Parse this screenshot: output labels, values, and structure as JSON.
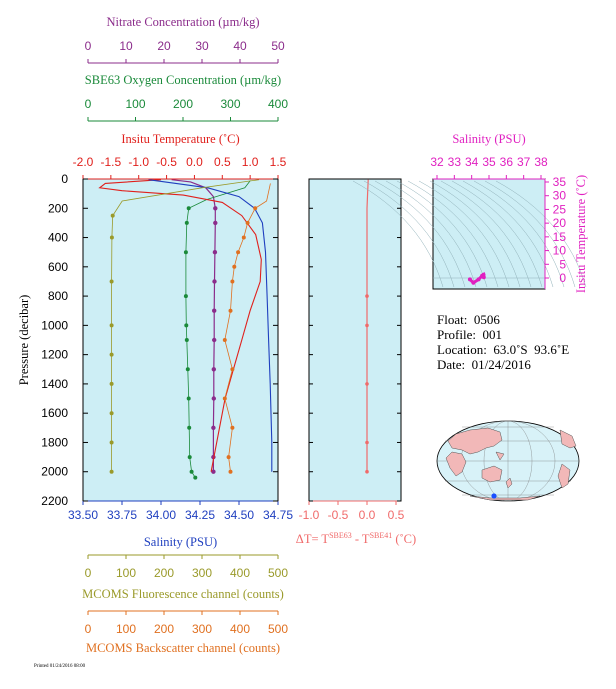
{
  "colors": {
    "panel_bg": "#cdeef5",
    "nitrate": "#8b2c8b",
    "oxygen": "#1a8a3a",
    "temperature": "#e0201c",
    "salinity": "#1f3fbf",
    "fluorescence": "#9a9a2a",
    "backscatter": "#e07020",
    "delta_t": "#f06a6a",
    "ts_diagram": "#e020c0",
    "map_ocean": "#d8f2f8",
    "map_land": "#f2b8b8",
    "float_marker": "#1a4fff"
  },
  "axes": {
    "nitrate": {
      "label": "Nitrate Concentration (µm/kg)",
      "ticks": [
        "0",
        "10",
        "20",
        "30",
        "40",
        "50"
      ]
    },
    "oxygen": {
      "label": "SBE63 Oxygen Concentration (µm/kg)",
      "ticks": [
        "0",
        "100",
        "200",
        "300",
        "400"
      ]
    },
    "temperature": {
      "label": "Insitu Temperature (˚C)",
      "ticks": [
        "-2.0",
        "-1.5",
        "-1.0",
        "-0.5",
        "0.0",
        "0.5",
        "1.0",
        "1.5"
      ]
    },
    "pressure": {
      "label": "Pressure (decibar)",
      "ticks": [
        "0",
        "200",
        "400",
        "600",
        "800",
        "1000",
        "1200",
        "1400",
        "1600",
        "1800",
        "2000",
        "2200"
      ]
    },
    "salinity": {
      "label": "Salinity (PSU)",
      "ticks": [
        "33.50",
        "33.75",
        "34.00",
        "34.25",
        "34.50",
        "34.75"
      ]
    },
    "fluorescence": {
      "label": "MCOMS Fluorescence channel (counts)",
      "ticks": [
        "0",
        "100",
        "200",
        "300",
        "400",
        "500"
      ]
    },
    "backscatter": {
      "label": "MCOMS Backscatter channel (counts)",
      "ticks": [
        "0",
        "100",
        "200",
        "300",
        "400",
        "500"
      ]
    },
    "delta_t": {
      "label_main": "ΔT= T",
      "sup1": "SBE63",
      "label_mid": " - T",
      "sup2": "SBE41",
      "label_end": " (˚C)",
      "ticks": [
        "-1.0",
        "-0.5",
        "0.0",
        "0.5"
      ]
    },
    "ts_salinity": {
      "label": "Salinity (PSU)",
      "ticks": [
        "32",
        "33",
        "34",
        "35",
        "36",
        "37",
        "38"
      ]
    },
    "ts_temperature": {
      "label": "Insitu Temperature (˚C)",
      "ticks": [
        "0",
        "5",
        "10",
        "15",
        "20",
        "25",
        "30",
        "35"
      ]
    }
  },
  "info": {
    "float": "Float:  0506",
    "profile": "Profile:  001",
    "location": "Location:  63.0˚S  93.6˚E",
    "date": "Date:  01/24/2016"
  },
  "footer_text": "Printed 01/24/2016 08:00",
  "chart_data": [
    {
      "type": "line",
      "title": "",
      "ylabel": "Pressure (decibar)",
      "ylim": [
        2200,
        0
      ],
      "grid": false,
      "series": [
        {
          "name": "Nitrate Concentration",
          "axis": "nitrate",
          "xlim": [
            0,
            50
          ],
          "x": [
            22,
            27,
            31,
            33,
            33.5,
            33.5,
            33.4,
            33.3,
            33.2,
            33.2,
            33.1,
            33.1,
            33.0,
            33.0,
            33.0
          ],
          "y": [
            5,
            20,
            60,
            120,
            200,
            300,
            500,
            700,
            900,
            1100,
            1300,
            1500,
            1700,
            1900,
            2000
          ]
        },
        {
          "name": "SBE63 Oxygen Concentration",
          "axis": "oxygen",
          "xlim": [
            0,
            400
          ],
          "x": [
            342,
            330,
            250,
            212,
            208,
            206,
            206,
            207,
            208,
            210,
            212,
            213,
            214,
            218,
            226
          ],
          "y": [
            10,
            60,
            140,
            200,
            300,
            500,
            800,
            1000,
            1100,
            1300,
            1500,
            1700,
            1900,
            2000,
            2040
          ]
        },
        {
          "name": "Insitu Temperature",
          "axis": "temperature",
          "xlim": [
            -2.0,
            1.5
          ],
          "x": [
            -0.6,
            -1.6,
            -1.7,
            -1.3,
            -0.2,
            0.5,
            0.85,
            1.1,
            1.2,
            1.18,
            1.0,
            0.85,
            0.7,
            0.55,
            0.45,
            0.35,
            0.3
          ],
          "y": [
            5,
            30,
            60,
            80,
            110,
            160,
            250,
            380,
            550,
            700,
            900,
            1100,
            1300,
            1500,
            1700,
            1900,
            2000
          ]
        },
        {
          "name": "Salinity",
          "axis": "salinity",
          "xlim": [
            33.5,
            34.75
          ],
          "x": [
            33.92,
            34.3,
            34.5,
            34.6,
            34.65,
            34.67,
            34.68,
            34.69,
            34.7,
            34.71,
            34.71
          ],
          "y": [
            5,
            60,
            120,
            200,
            300,
            500,
            800,
            1100,
            1400,
            1800,
            2000
          ]
        },
        {
          "name": "MCOMS Fluorescence channel",
          "axis": "fluorescence",
          "xlim": [
            0,
            500
          ],
          "x": [
            450,
            300,
            90,
            65,
            63,
            62,
            62,
            62,
            62,
            62,
            62,
            62
          ],
          "y": [
            5,
            60,
            150,
            250,
            400,
            700,
            1000,
            1200,
            1400,
            1600,
            1800,
            2000
          ]
        },
        {
          "name": "MCOMS Backscatter channel",
          "axis": "backscatter",
          "xlim": [
            0,
            500
          ],
          "x": [
            480,
            470,
            440,
            420,
            410,
            395,
            385,
            380,
            375,
            360,
            380,
            360,
            380,
            370,
            375
          ],
          "y": [
            30,
            150,
            200,
            300,
            400,
            500,
            600,
            700,
            900,
            1100,
            1300,
            1500,
            1700,
            1900,
            2000
          ]
        }
      ]
    },
    {
      "type": "line",
      "title": "",
      "xlabel": "ΔT= TSBE63 - TSBE41 (˚C)",
      "xlim": [
        -1.0,
        0.5
      ],
      "ylim": [
        2200,
        0
      ],
      "series": [
        {
          "name": "ΔT",
          "x": [
            0.02,
            0.01,
            0.0,
            0.0,
            0.0,
            0.0,
            0.0,
            0.0,
            0.0
          ],
          "y": [
            5,
            100,
            200,
            400,
            800,
            1000,
            1400,
            1800,
            2000
          ]
        }
      ]
    },
    {
      "type": "scatter",
      "title": "",
      "xlabel": "Salinity (PSU)",
      "ylabel": "Insitu Temperature (˚C)",
      "xlim": [
        32,
        38
      ],
      "ylim": [
        -3,
        35
      ],
      "series": [
        {
          "name": "T-S",
          "x": [
            33.9,
            34.1,
            34.4,
            34.6,
            34.68,
            34.7
          ],
          "y": [
            -0.5,
            -1.7,
            -0.5,
            0.8,
            1.2,
            0.3
          ]
        }
      ]
    }
  ]
}
